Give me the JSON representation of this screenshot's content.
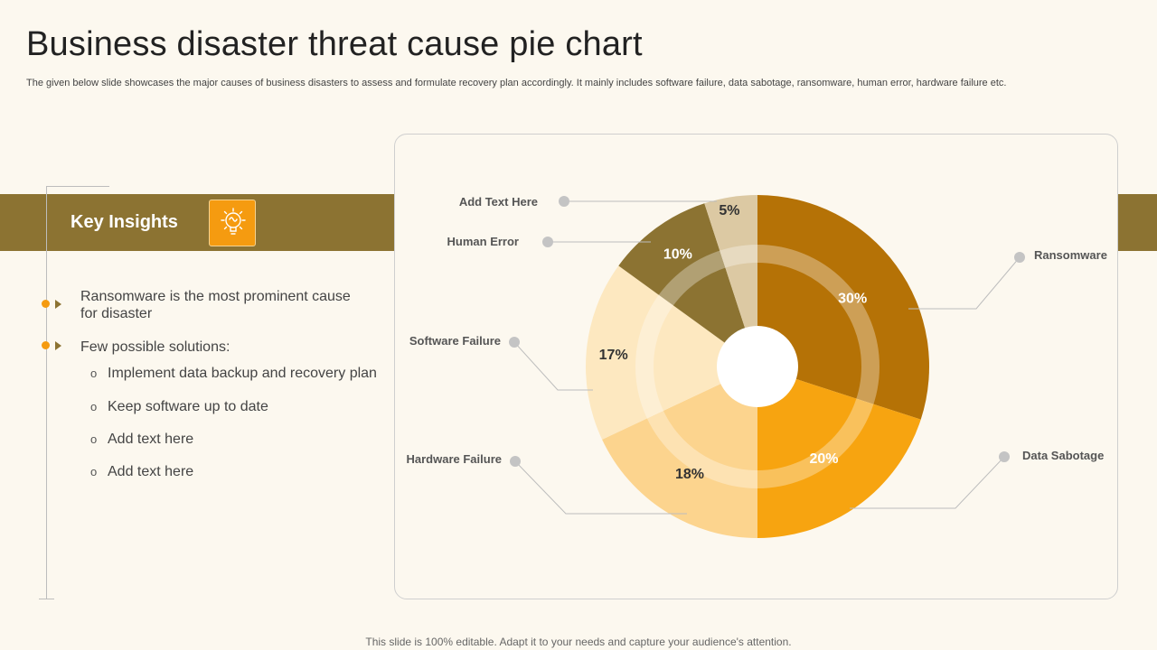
{
  "page": {
    "title": "Business disaster threat cause pie chart",
    "subtitle": "The given below slide showcases the major causes of business disasters to assess and formulate recovery plan accordingly. It mainly includes software failure, data sabotage, ransomware, human error, hardware failure etc.",
    "footer": "This slide is 100% editable. Adapt it to your needs and capture your audience's attention."
  },
  "insights": {
    "heading": "Key Insights",
    "icon": "lightbulb-brain-icon",
    "points": [
      {
        "text": "Ransomware is the most prominent cause for disaster"
      },
      {
        "text": "Few possible solutions:"
      }
    ],
    "solutions": [
      "Implement  data backup and recovery plan",
      "Keep software up to date",
      "Add text here",
      "Add text here"
    ]
  },
  "colors": {
    "accent": "#f59b10",
    "band": "#8c7332",
    "background": "#fcf8ef"
  },
  "chart_data": {
    "type": "pie",
    "style": "donut",
    "categories": [
      "Ransomware",
      "Data Sabotage",
      "Hardware Failure",
      "Software Failure",
      "Human Error",
      "Add Text Here"
    ],
    "values": [
      30,
      20,
      18,
      17,
      10,
      5
    ],
    "data_labels": [
      "30%",
      "20%",
      "18%",
      "17%",
      "10%",
      "5%"
    ],
    "colors": [
      "#b57206",
      "#f7a410",
      "#fcd48e",
      "#fde8c0",
      "#8c7332",
      "#dcc9a3"
    ],
    "label_colors": [
      "#ffffff",
      "#ffffff",
      "#333333",
      "#333333",
      "#ffffff",
      "#333333"
    ],
    "legend": "callouts"
  }
}
